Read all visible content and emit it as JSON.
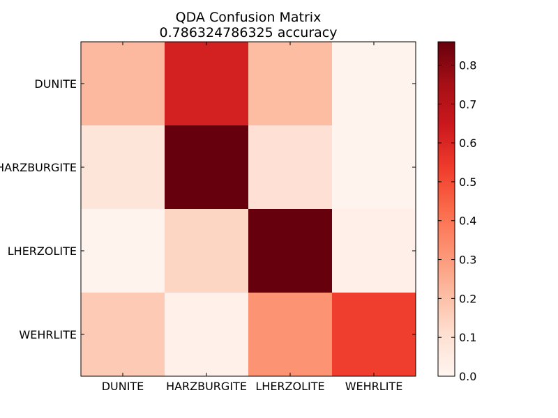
{
  "chart_data": {
    "type": "heatmap",
    "title": "QDA Confusion Matrix",
    "subtitle": "0.786324786325 accuracy",
    "xlabel": "",
    "ylabel": "",
    "row_labels": [
      "DUNITE",
      "HARZBURGITE",
      "LHERZOLITE",
      "WEHRLITE"
    ],
    "col_labels": [
      "DUNITE",
      "HARZBURGITE",
      "LHERZOLITE",
      "WEHRLITE"
    ],
    "values": [
      [
        0.22,
        0.62,
        0.21,
        0.01
      ],
      [
        0.08,
        0.86,
        0.1,
        0.01
      ],
      [
        0.01,
        0.14,
        0.86,
        0.03
      ],
      [
        0.17,
        0.02,
        0.32,
        0.53
      ]
    ],
    "colormap": "Reds",
    "vmin": 0.0,
    "vmax": 0.86,
    "colorbar_ticks": [
      "0.0",
      "0.1",
      "0.2",
      "0.3",
      "0.4",
      "0.5",
      "0.6",
      "0.7",
      "0.8"
    ],
    "grid": false,
    "legend": "colorbar-right"
  }
}
